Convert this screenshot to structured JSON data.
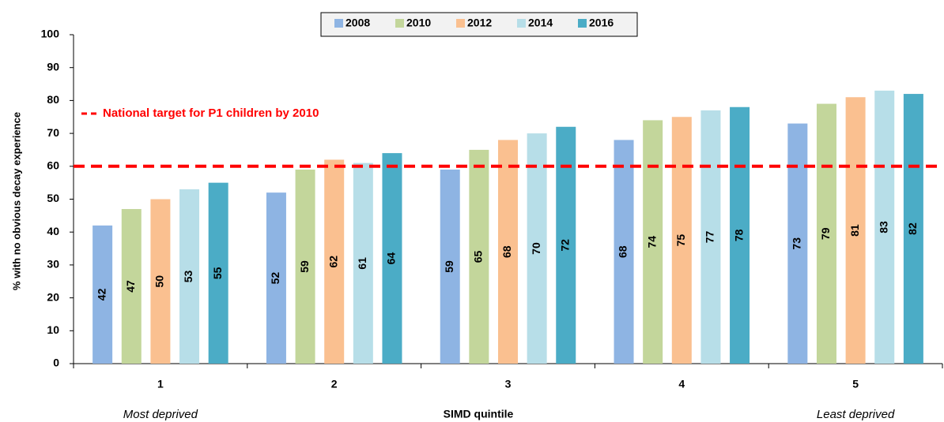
{
  "chart_data": {
    "type": "bar",
    "y_label": "% with no obvious decay experience",
    "x_label": "SIMD quintile",
    "categories": [
      "1",
      "2",
      "3",
      "4",
      "5"
    ],
    "x_sublabels": [
      "Most deprived",
      null,
      null,
      null,
      "Least deprived"
    ],
    "series": [
      {
        "name": "2008",
        "color": "#8eb4e3",
        "values": [
          42,
          52,
          59,
          68,
          73
        ]
      },
      {
        "name": "2010",
        "color": "#c3d69b",
        "values": [
          47,
          59,
          65,
          74,
          79
        ]
      },
      {
        "name": "2012",
        "color": "#fac090",
        "values": [
          50,
          62,
          68,
          75,
          81
        ]
      },
      {
        "name": "2014",
        "color": "#b7dee8",
        "values": [
          53,
          61,
          70,
          77,
          83
        ]
      },
      {
        "name": "2016",
        "color": "#4bacc6",
        "values": [
          55,
          64,
          72,
          78,
          82
        ]
      }
    ],
    "reference_line": {
      "value": 60,
      "label": "National target for P1 children by 2010",
      "color": "#ff0000"
    },
    "ylim": [
      0,
      100
    ],
    "yticks": [
      0,
      10,
      20,
      30,
      40,
      50,
      60,
      70,
      80,
      90,
      100
    ],
    "grid": false,
    "legend": "top"
  }
}
